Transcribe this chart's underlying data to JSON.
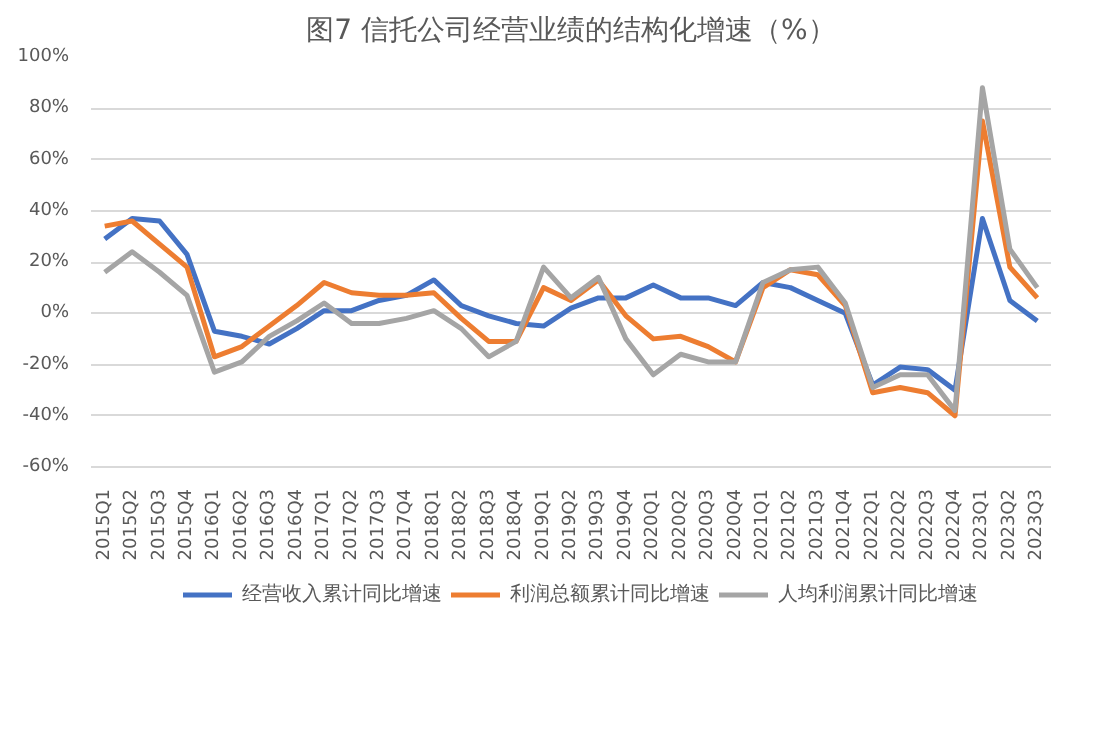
{
  "chart_data": {
    "type": "line",
    "title": "图7 信托公司经营业绩的结构化增速（%）",
    "categories": [
      "2015Q1",
      "2015Q2",
      "2015Q3",
      "2015Q4",
      "2016Q1",
      "2016Q2",
      "2016Q3",
      "2016Q4",
      "2017Q1",
      "2017Q2",
      "2017Q3",
      "2017Q4",
      "2018Q1",
      "2018Q2",
      "2018Q3",
      "2018Q4",
      "2019Q1",
      "2019Q2",
      "2019Q3",
      "2019Q4",
      "2020Q1",
      "2020Q2",
      "2020Q3",
      "2020Q4",
      "2021Q1",
      "2021Q2",
      "2021Q3",
      "2021Q4",
      "2022Q1",
      "2022Q2",
      "2022Q3",
      "2022Q4",
      "2023Q1",
      "2023Q2",
      "2023Q3"
    ],
    "series": [
      {
        "name": "经营收入累计同比增速",
        "color": "#4472c4",
        "values": [
          29,
          37,
          36,
          23,
          -7,
          -9,
          -12,
          -6,
          1,
          1,
          5,
          7,
          13,
          3,
          -1,
          -4,
          -5,
          2,
          6,
          6,
          11,
          6,
          6,
          3,
          12,
          10,
          5,
          0,
          -28,
          -21,
          -22,
          -30,
          37,
          5,
          -3
        ]
      },
      {
        "name": "利润总额累计同比增速",
        "color": "#ed7d31",
        "values": [
          34,
          36,
          27,
          18,
          -17,
          -13,
          -5,
          3,
          12,
          8,
          7,
          7,
          8,
          -2,
          -11,
          -11,
          10,
          5,
          13,
          -1,
          -10,
          -9,
          -13,
          -19,
          10,
          17,
          15,
          3,
          -31,
          -29,
          -31,
          -40,
          75,
          18,
          6
        ]
      },
      {
        "name": "人均利润累计同比增速",
        "color": "#a5a5a5",
        "values": [
          16,
          24,
          16,
          7,
          -23,
          -19,
          -9,
          -3,
          4,
          -4,
          -4,
          -2,
          1,
          -6,
          -17,
          -11,
          18,
          6,
          14,
          -10,
          -24,
          -16,
          -19,
          -19,
          12,
          17,
          18,
          4,
          -29,
          -24,
          -24,
          -38,
          88,
          25,
          10
        ]
      }
    ],
    "ylim": [
      -60,
      100
    ],
    "yticks": [
      {
        "value": -60,
        "label": "-60%"
      },
      {
        "value": -40,
        "label": "-40%"
      },
      {
        "value": -20,
        "label": "-20%"
      },
      {
        "value": 0,
        "label": "0%"
      },
      {
        "value": 20,
        "label": "20%"
      },
      {
        "value": 40,
        "label": "40%"
      },
      {
        "value": 60,
        "label": "60%"
      },
      {
        "value": 80,
        "label": "80%"
      },
      {
        "value": 100,
        "label": "100%"
      }
    ],
    "grid": "y",
    "legend": "bottom",
    "marker": "none",
    "line_style": "solid"
  }
}
